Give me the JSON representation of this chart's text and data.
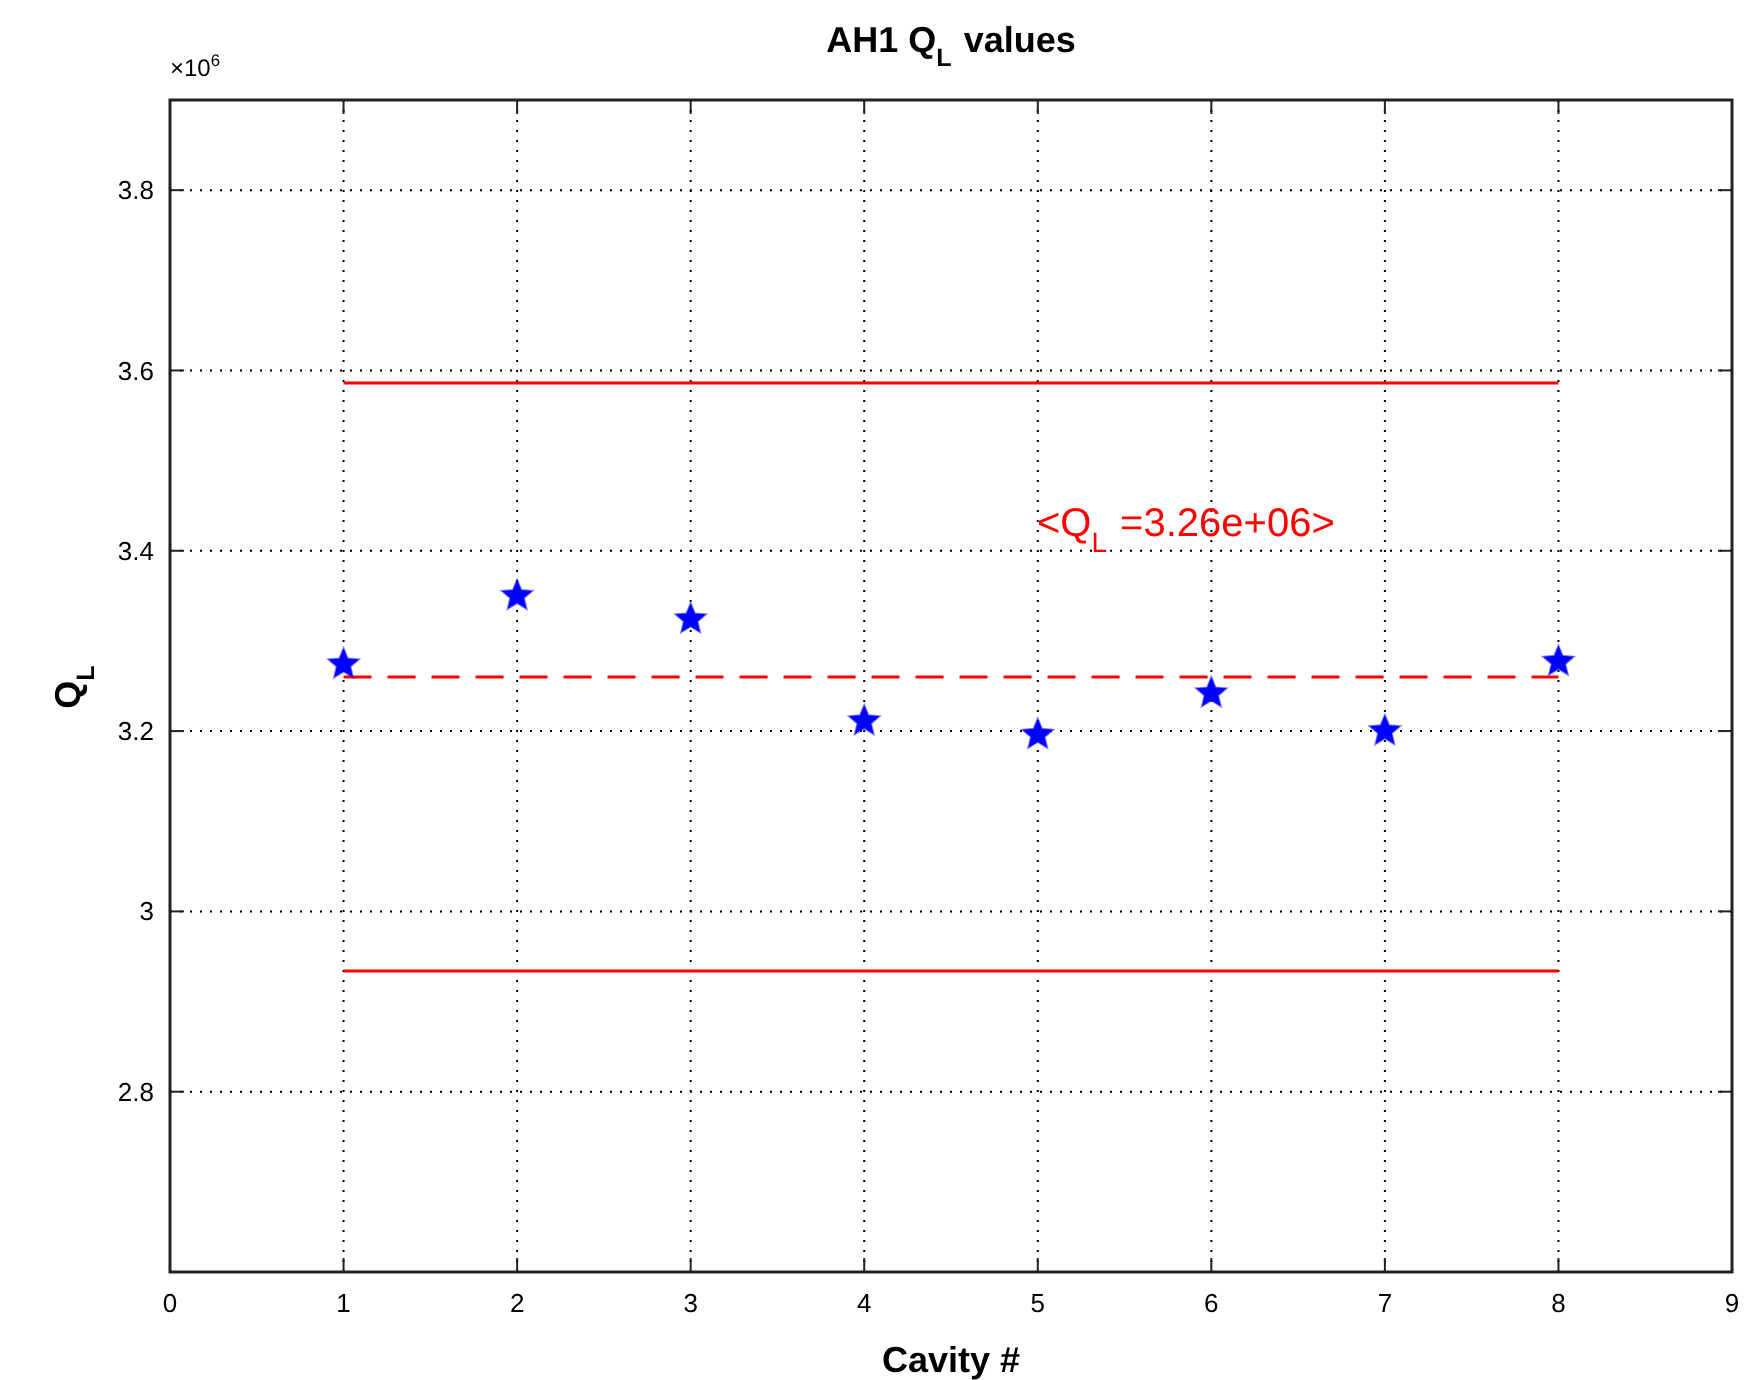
{
  "chart_data": {
    "type": "scatter",
    "title": "AH1 Q$_{L}$ values",
    "xlabel": "Cavity #",
    "ylabel": "Q$_{L}$",
    "x": [
      1,
      2,
      3,
      4,
      5,
      6,
      7,
      8
    ],
    "series": [
      {
        "type": "line",
        "values": [
          3.586,
          3.586,
          3.586,
          3.586,
          3.586,
          3.586,
          3.586,
          3.586
        ],
        "color": "#ff0000",
        "line_style": "solid",
        "marker": "none"
      },
      {
        "type": "line",
        "values": [
          2.934,
          2.934,
          2.934,
          2.934,
          2.934,
          2.934,
          2.934,
          2.934
        ],
        "color": "#ff0000",
        "line_style": "solid",
        "marker": "none"
      },
      {
        "type": "line",
        "values": [
          3.26,
          3.26,
          3.26,
          3.26,
          3.26,
          3.26,
          3.26,
          3.26
        ],
        "color": "#ff0000",
        "line_style": "dashed",
        "marker": "none"
      },
      {
        "values": [
          3.274,
          3.35,
          3.324,
          3.211,
          3.196,
          3.242,
          3.2,
          3.277
        ],
        "color": "#0000ff",
        "marker": "star"
      }
    ],
    "annotations": [
      "×10$^{6}$",
      "<Q$_{L}$ =3.26e+06>"
    ],
    "xlim": [
      0,
      9
    ],
    "xticks": [
      0,
      1,
      2,
      3,
      4,
      5,
      6,
      7,
      8,
      9
    ],
    "ylim": [
      2.6,
      3.9
    ],
    "yticks": [
      2.8,
      3,
      3.2,
      3.4,
      3.6,
      3.8
    ],
    "grid": true
  }
}
